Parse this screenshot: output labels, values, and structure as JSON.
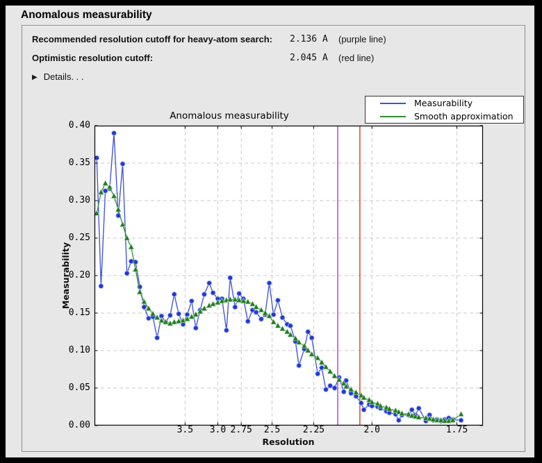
{
  "window": {
    "title": "Anomalous measurability"
  },
  "info": {
    "rows": [
      {
        "label": "Recommended resolution cutoff for heavy-atom search:",
        "value": "2.136 A",
        "note": "(purple line)"
      },
      {
        "label": "Optimistic resolution cutoff:",
        "value": "2.045 A",
        "note": "(red line)"
      }
    ],
    "details": {
      "icon": "right-triangle-disclosure",
      "label": "Details. . ."
    }
  },
  "chart_data": {
    "type": "line",
    "title": "Anomalous measurability",
    "xlabel": "Resolution",
    "ylabel": "Measurability",
    "x_axis": {
      "unit": "Angstrom",
      "scale": "linear in 1/d^2, from 1/d^2 = 0 to 0.35",
      "tick_labels": [
        "3.5",
        "3.0",
        "2.75",
        "2.5",
        "2.25",
        "2.0",
        "1.75"
      ],
      "tick_values_A": [
        3.5,
        3.0,
        2.75,
        2.5,
        2.25,
        2.0,
        1.75
      ]
    },
    "y_axis": {
      "range": [
        0.0,
        0.4
      ],
      "tick_step": 0.05,
      "tick_labels": [
        "0.00",
        "0.05",
        "0.10",
        "0.15",
        "0.20",
        "0.25",
        "0.30",
        "0.35",
        "0.40"
      ]
    },
    "grid": "dashed gray at every labeled tick",
    "legend": {
      "position": "top-right above axes",
      "entries": [
        {
          "label": "Measurability",
          "color": "#3c50dc"
        },
        {
          "label": "Smooth approximation",
          "color": "#2f8b2f"
        }
      ]
    },
    "vlines": [
      {
        "resolution_A": 2.136,
        "color": "#c840c8"
      },
      {
        "resolution_A": 2.045,
        "color": "#e0481a"
      }
    ],
    "resolution_A": [
      22.32,
      13.03,
      10.11,
      8.55,
      7.55,
      6.83,
      6.28,
      5.85,
      5.5,
      5.2,
      4.95,
      4.73,
      4.53,
      4.36,
      4.21,
      4.07,
      3.95,
      3.83,
      3.73,
      3.63,
      3.54,
      3.46,
      3.38,
      3.31,
      3.24,
      3.18,
      3.11,
      3.06,
      3.0,
      2.95,
      2.9,
      2.86,
      2.81,
      2.77,
      2.73,
      2.69,
      2.65,
      2.62,
      2.58,
      2.55,
      2.52,
      2.49,
      2.46,
      2.43,
      2.4,
      2.38,
      2.35,
      2.33,
      2.3,
      2.28,
      2.26,
      2.23,
      2.21,
      2.19,
      2.17,
      2.15,
      2.13,
      2.11,
      2.1,
      2.08,
      2.06,
      2.04,
      2.03,
      2.01,
      2.0,
      1.98,
      1.97,
      1.95,
      1.94,
      1.92,
      1.91,
      1.9,
      1.88,
      1.87,
      1.86,
      1.85,
      1.83,
      1.82,
      1.81,
      1.8,
      1.79,
      1.78,
      1.77,
      1.76,
      1.74
    ],
    "series": [
      {
        "name": "Measurability",
        "marker": "circle",
        "values": [
          0.357,
          0.186,
          0.313,
          0.316,
          0.39,
          0.28,
          0.349,
          0.203,
          0.219,
          0.218,
          0.185,
          0.158,
          0.143,
          0.145,
          0.117,
          0.146,
          0.138,
          0.147,
          0.175,
          0.149,
          0.135,
          0.148,
          0.166,
          0.13,
          0.154,
          0.175,
          0.19,
          0.177,
          0.169,
          0.169,
          0.127,
          0.197,
          0.158,
          0.176,
          0.169,
          0.139,
          0.154,
          0.151,
          0.142,
          0.148,
          0.19,
          0.148,
          0.167,
          0.144,
          0.135,
          0.133,
          0.112,
          0.08,
          0.102,
          0.125,
          0.117,
          0.069,
          0.077,
          0.048,
          0.053,
          0.05,
          0.064,
          0.045,
          0.06,
          0.043,
          0.039,
          0.03,
          0.021,
          0.028,
          0.026,
          0.025,
          0.023,
          0.019,
          0.017,
          0.015,
          0.007,
          0.014,
          0.014,
          0.021,
          0.014,
          0.023,
          0.006,
          0.014,
          0.007,
          0.008,
          0.006,
          0.008,
          0.01,
          0.008,
          0.007
        ]
      },
      {
        "name": "Smooth approximation",
        "marker": "triangle-up",
        "values": [
          0.283,
          0.311,
          0.323,
          0.318,
          0.306,
          0.288,
          0.268,
          0.25,
          0.238,
          0.208,
          0.178,
          0.165,
          0.156,
          0.149,
          0.144,
          0.14,
          0.138,
          0.136,
          0.138,
          0.139,
          0.14,
          0.142,
          0.145,
          0.148,
          0.152,
          0.156,
          0.16,
          0.162,
          0.164,
          0.166,
          0.167,
          0.168,
          0.168,
          0.167,
          0.166,
          0.165,
          0.162,
          0.158,
          0.154,
          0.15,
          0.146,
          0.138,
          0.133,
          0.129,
          0.125,
          0.121,
          0.116,
          0.111,
          0.106,
          0.1,
          0.095,
          0.09,
          0.084,
          0.078,
          0.072,
          0.066,
          0.061,
          0.056,
          0.052,
          0.048,
          0.044,
          0.04,
          0.037,
          0.034,
          0.031,
          0.029,
          0.026,
          0.024,
          0.022,
          0.02,
          0.018,
          0.016,
          0.015,
          0.013,
          0.012,
          0.011,
          0.01,
          0.009,
          0.008,
          0.007,
          0.007,
          0.006,
          0.006,
          0.007,
          0.015
        ]
      }
    ]
  },
  "colors": {
    "window_bg": "#e7e7e7",
    "plot_bg": "#ffffff",
    "grid": "#c9c9c9",
    "blue_line": "#4556dd",
    "blue_marker": "#2139d4",
    "green_line": "#338a33",
    "green_marker": "#1e7d1e",
    "purple_vline": "#c840c8",
    "red_vline": "#e0481a"
  }
}
